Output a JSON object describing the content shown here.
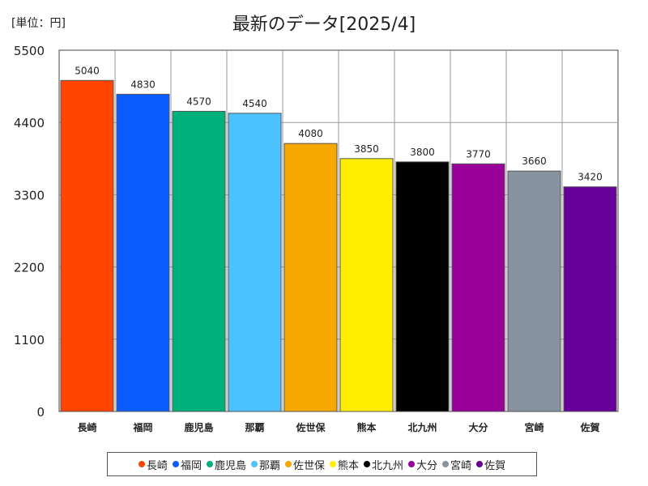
{
  "unit_label": "[単位：円]",
  "chart_data": {
    "type": "bar",
    "title": "最新のデータ[2025/4]",
    "categories": [
      "長崎",
      "福岡",
      "鹿児島",
      "那覇",
      "佐世保",
      "熊本",
      "北九州",
      "大分",
      "宮崎",
      "佐賀"
    ],
    "values": [
      5040,
      4830,
      4570,
      4540,
      4080,
      3850,
      3800,
      3770,
      3660,
      3420
    ],
    "colors": [
      "#ff4500",
      "#0a5cff",
      "#00b07a",
      "#4cc2ff",
      "#f5a800",
      "#ffee00",
      "#000000",
      "#990099",
      "#8893a0",
      "#660099"
    ],
    "ylim": [
      0,
      5500
    ],
    "yticks": [
      0,
      1100,
      2200,
      3300,
      4400,
      5500
    ],
    "xlabel": "",
    "ylabel": "",
    "grid": true,
    "legend": "bottom"
  }
}
